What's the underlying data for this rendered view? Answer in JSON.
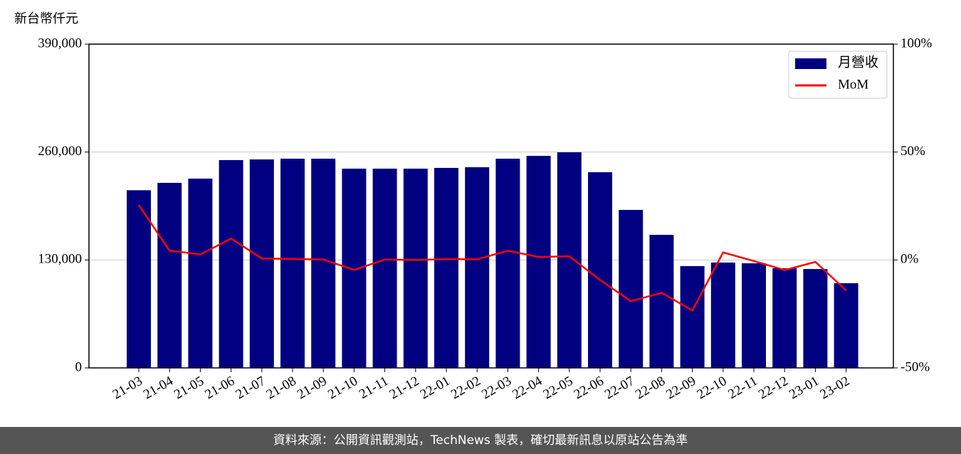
{
  "chart_data": {
    "type": "bar",
    "y_label": "新台幣仟元",
    "categories": [
      "21-03",
      "21-04",
      "21-05",
      "21-06",
      "21-07",
      "21-08",
      "21-09",
      "21-10",
      "21-11",
      "21-12",
      "22-01",
      "22-02",
      "22-03",
      "22-04",
      "22-05",
      "22-06",
      "22-07",
      "22-08",
      "22-09",
      "22-10",
      "22-11",
      "22-12",
      "23-01",
      "23-02"
    ],
    "series": [
      {
        "name": "月營收",
        "type": "bar",
        "color": "#000080",
        "values": [
          214000,
          222900,
          228000,
          250300,
          251100,
          252000,
          252000,
          240000,
          240000,
          240000,
          240900,
          241700,
          252000,
          255400,
          259700,
          235700,
          190300,
          160300,
          122600,
          126900,
          126000,
          120000,
          119100,
          102000
        ]
      },
      {
        "name": "MoM",
        "type": "line",
        "axis": "y2",
        "color": "#ff0000",
        "values": [
          25.4,
          4.3,
          2.6,
          9.9,
          0.7,
          0.5,
          0.2,
          -4.6,
          0.2,
          0,
          0.4,
          0.3,
          4.3,
          1.4,
          1.7,
          -9.3,
          -19.1,
          -15.2,
          -23.4,
          3.5,
          -0.5,
          -4.7,
          -0.9,
          -14.1
        ]
      }
    ],
    "ylim": [
      0,
      390000
    ],
    "yticks": [
      0,
      {
        "value": 130000,
        "label": "130,000"
      },
      {
        "value": 260000,
        "label": "260,000"
      },
      {
        "value": 390000,
        "label": "390,000"
      }
    ],
    "y2lim": [
      -50,
      100
    ],
    "y2ticks": [
      {
        "value": -50,
        "label": "-50%"
      },
      {
        "value": 0,
        "label": "0%"
      },
      {
        "value": 50,
        "label": "50%"
      },
      {
        "value": 100,
        "label": "100%"
      }
    ],
    "grid": true,
    "legend": "upper-right",
    "source": "資料來源：公開資訊觀測站，TechNews 製表，確切最新訊息以原站公告為準"
  }
}
